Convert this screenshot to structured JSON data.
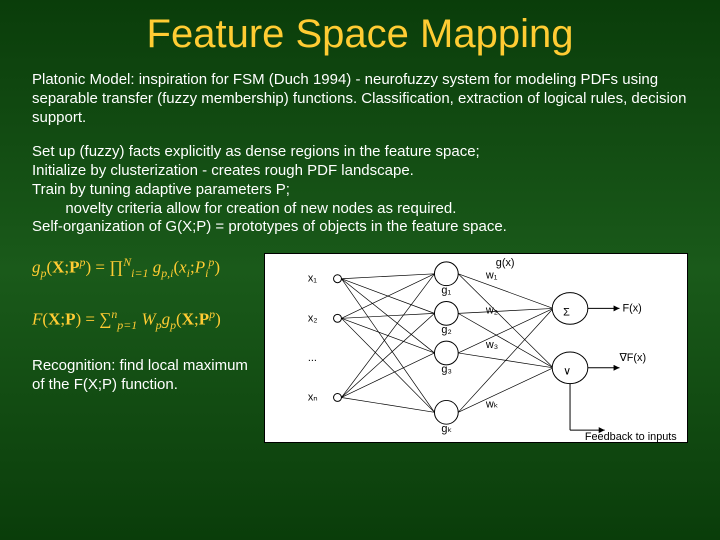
{
  "title": "Feature Space Mapping",
  "para1": "Platonic Model: inspiration for FSM (Duch 1994) - neurofuzzy system for modeling PDFs using separable transfer (fuzzy membership) functions. Classification, extraction of logical rules, decision support.",
  "para2_l1": "Set up (fuzzy) facts explicitly as dense regions in the feature space;",
  "para2_l2": "Initialize by clusterization - creates rough PDF landscape.",
  "para2_l3": "Train by tuning adaptive parameters P;",
  "para2_l4": "        novelty criteria allow for creation of new nodes as required.",
  "para2_l5": "Self-organization of G(X;P) = prototypes of objects in the feature space.",
  "recog_l1": "Recognition: find local maximum",
  "recog_l2": "of the F(X;P) function.",
  "formula1_html": "<span class='ital'>g</span><span class='sub ital'>p</span>(<b>X</b>;<b>P</b><span class='sup ital'>p</span>) = ∏<span class='sup ital'>N</span><span class='sub ital'>i=1</span> <span class='ital'>g</span><span class='sub ital'>p,i</span>(<span class='ital'>x</span><span class='sub ital'>i</span>;<span class='ital'>P</span><span class='sub ital'>i</span><span class='sup ital'>p</span>)",
  "formula2_html": "<span class='ital'>F</span>(<b>X</b>;<b>P</b>) = ∑<span class='sup ital'>n</span><span class='sub ital'>p=1</span> <span class='ital'>W</span><span class='sub ital'>p</span><span class='ital'>g</span><span class='sub ital'>p</span>(<b>X</b>;<b>P</b><span class='sup ital'>p</span>)",
  "colors": {
    "title": "#ffcc33",
    "body": "#ffffff",
    "formula": "#ffcc33",
    "bg_top": "#0a3d0a",
    "bg_mid": "#1a5a1a"
  },
  "diagram": {
    "type": "network",
    "input_labels": [
      "x₁",
      "x₂",
      "...",
      "xₙ"
    ],
    "hidden_labels": [
      "g₁",
      "g₂",
      "g₃",
      "...",
      "gₖ"
    ],
    "weight_labels": [
      "w₁",
      "w₂",
      "w₃",
      "wₖ"
    ],
    "output_top": "F(x)",
    "output_bot": "∇F(x)",
    "sigma": "Σ",
    "or": "∨",
    "feedback": "Feedback to inputs",
    "gx": "g(x)",
    "node_color": "#ffffff",
    "stroke": "#000000",
    "line_width": 1
  }
}
